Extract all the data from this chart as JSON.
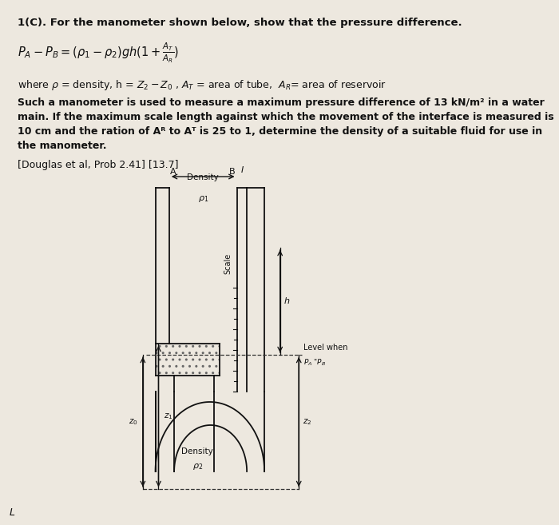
{
  "title_line": "1(C). For the manometer shown below, show that the pressure difference.",
  "where_line": "where ρ = density, h = Z₂ − Z₀ , Aᵀ = area of tube,  Aᴿ= area of reservoir",
  "para1_line1": "Such a manometer is used to measure a maximum pressure difference of 13 kN/m² in a water",
  "para1_line2": "main. If the maximum scale length against which the movement of the interface is measured is",
  "para1_line3": "10 cm and the ration of Aᴿ to Aᵀ is 25 to 1, determine the density of a suitable fluid for use in",
  "para1_line4": "the manometer.",
  "ref_line": "[Douglas et al, Prob 2.41] [13.7]",
  "footer": "L",
  "bg_color": "#ede8df",
  "text_color": "#111111",
  "diagram_line_color": "#111111",
  "font_size_title": 9.5,
  "font_size_body": 9.0,
  "font_size_formula": 10.5
}
